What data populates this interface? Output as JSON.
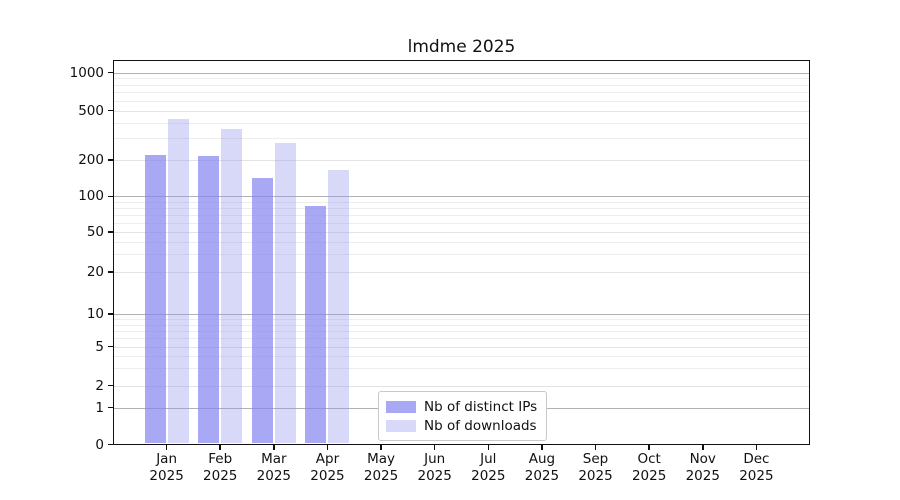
{
  "title": "lmdme 2025",
  "axes": {
    "y_ticks": [
      "0",
      "1",
      "2",
      "5",
      "10",
      "20",
      "50",
      "100",
      "200",
      "500",
      "1000"
    ],
    "x_ticks": [
      {
        "month": "Jan",
        "year": "2025"
      },
      {
        "month": "Feb",
        "year": "2025"
      },
      {
        "month": "Mar",
        "year": "2025"
      },
      {
        "month": "Apr",
        "year": "2025"
      },
      {
        "month": "May",
        "year": "2025"
      },
      {
        "month": "Jun",
        "year": "2025"
      },
      {
        "month": "Jul",
        "year": "2025"
      },
      {
        "month": "Aug",
        "year": "2025"
      },
      {
        "month": "Sep",
        "year": "2025"
      },
      {
        "month": "Oct",
        "year": "2025"
      },
      {
        "month": "Nov",
        "year": "2025"
      },
      {
        "month": "Dec",
        "year": "2025"
      }
    ]
  },
  "chart_data": {
    "type": "bar",
    "title": "lmdme 2025",
    "categories": [
      "Jan 2025",
      "Feb 2025",
      "Mar 2025",
      "Apr 2025",
      "May 2025",
      "Jun 2025",
      "Jul 2025",
      "Aug 2025",
      "Sep 2025",
      "Oct 2025",
      "Nov 2025",
      "Dec 2025"
    ],
    "series": [
      {
        "name": "Nb of distinct IPs",
        "color": "#a8a8f5",
        "fill": "rgba(131,131,241,0.70)",
        "values": [
          220,
          215,
          143,
          83,
          0,
          0,
          0,
          0,
          0,
          0,
          0,
          0
        ]
      },
      {
        "name": "Nb of downloads",
        "color": "#d8d8f8",
        "fill": "rgba(144,144,235,0.35)",
        "values": [
          430,
          355,
          275,
          165,
          0,
          0,
          0,
          0,
          0,
          0,
          0,
          0
        ]
      }
    ],
    "yscale": "symlog-like",
    "ytick_values": [
      0,
      1,
      2,
      5,
      10,
      20,
      50,
      100,
      200,
      500,
      1000
    ],
    "ylim": [
      0,
      1000
    ],
    "grid": "horizontal",
    "legend_position": "lower center",
    "grid_colors": {
      "decade": "#b2b2b2",
      "labeled": "#e3e3e3",
      "minor": "#ededed"
    }
  }
}
